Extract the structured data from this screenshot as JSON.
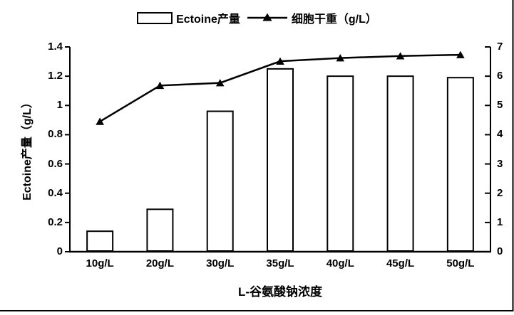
{
  "page": {
    "background": "#ffffff",
    "frame_color": "#000000",
    "ink_color": "#000000"
  },
  "legend": {
    "items": [
      {
        "label": "Ectoine产量",
        "marker": "open-bar-swatch"
      },
      {
        "label": "细胞干重（g/L）",
        "marker": "line-with-filled-triangle"
      }
    ]
  },
  "chart_data": {
    "type": "bar+line combo",
    "categories": [
      "10g/L",
      "20g/L",
      "30g/L",
      "35g/L",
      "40g/L",
      "45g/L",
      "50g/L"
    ],
    "series": [
      {
        "name": "Ectoine产量",
        "type": "bar",
        "axis": "left",
        "fill": "#ffffff",
        "stroke": "#000000",
        "values": [
          0.14,
          0.29,
          0.96,
          1.25,
          1.2,
          1.2,
          1.19
        ]
      },
      {
        "name": "细胞干重（g/L）",
        "type": "line",
        "axis": "right",
        "color": "#000000",
        "marker": "filled-triangle",
        "values": [
          4.45,
          5.68,
          5.77,
          6.51,
          6.62,
          6.69,
          6.73
        ]
      }
    ],
    "xlabel": "L-谷氨酸钠浓度",
    "ylabel_left": "Ectoine产量（g/L）",
    "ylabel_right": "",
    "left_axis": {
      "min": 0,
      "max": 1.4,
      "step": 0.2,
      "tick_labels": [
        "0",
        "0.2",
        "0.4",
        "0.6",
        "0.8",
        "1",
        "1.2",
        "1.4"
      ]
    },
    "right_axis": {
      "min": 0,
      "max": 7,
      "step": 1,
      "tick_labels": [
        "0",
        "1",
        "2",
        "3",
        "4",
        "5",
        "6",
        "7"
      ]
    },
    "grid": false,
    "legend_position": "top-center"
  }
}
